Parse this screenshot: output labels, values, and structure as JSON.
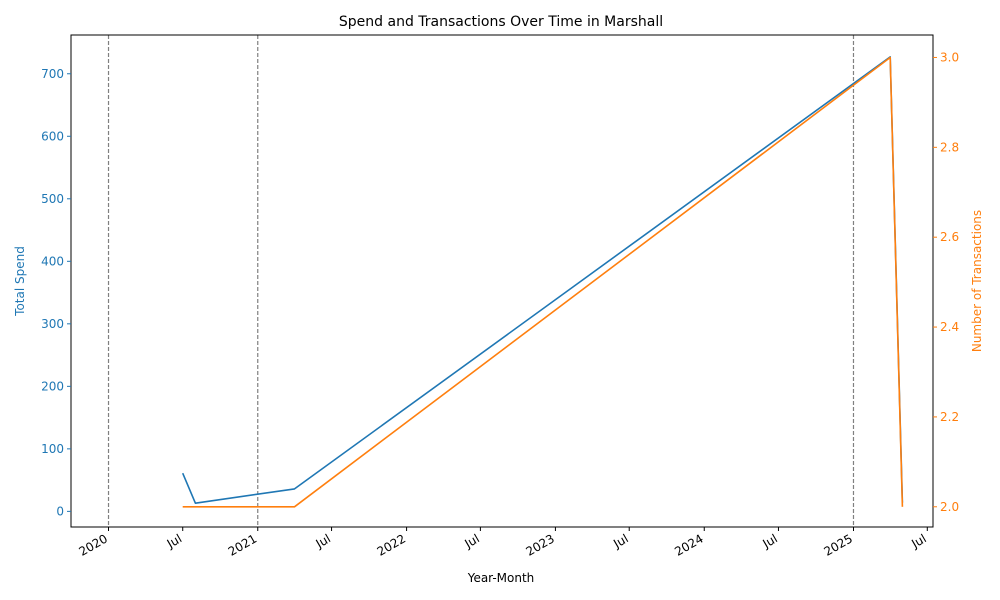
{
  "chart_data": {
    "type": "line",
    "title": "Spend and Transactions Over Time in Marshall",
    "xlabel": "Year-Month",
    "x_range": [
      "2019-10-01",
      "2025-07-15"
    ],
    "x_ticks": [
      {
        "date": "2020-01-01",
        "label": "2020"
      },
      {
        "date": "2020-07-01",
        "label": "Jul"
      },
      {
        "date": "2021-01-01",
        "label": "2021"
      },
      {
        "date": "2021-07-01",
        "label": "Jul"
      },
      {
        "date": "2022-01-01",
        "label": "2022"
      },
      {
        "date": "2022-07-01",
        "label": "Jul"
      },
      {
        "date": "2023-01-01",
        "label": "2023"
      },
      {
        "date": "2023-07-01",
        "label": "Jul"
      },
      {
        "date": "2024-01-01",
        "label": "2024"
      },
      {
        "date": "2024-07-01",
        "label": "Jul"
      },
      {
        "date": "2025-01-01",
        "label": "2025"
      },
      {
        "date": "2025-07-01",
        "label": "Jul"
      }
    ],
    "reference_lines": [
      "2020-01-01",
      "2021-01-01",
      "2025-01-01"
    ],
    "left_axis": {
      "label": "Total Spend",
      "color": "#1f77b4",
      "ylim": [
        -25,
        762
      ],
      "ticks": [
        0,
        100,
        200,
        300,
        400,
        500,
        600,
        700
      ]
    },
    "right_axis": {
      "label": "Number of Transactions",
      "color": "#ff7f0e",
      "ylim": [
        1.955,
        3.05
      ],
      "ticks": [
        2.0,
        2.2,
        2.4,
        2.6,
        2.8,
        3.0
      ],
      "tick_labels": [
        "2.0",
        "2.2",
        "2.4",
        "2.6",
        "2.8",
        "3.0"
      ]
    },
    "series": [
      {
        "axis": "left",
        "color": "#1f77b4",
        "points": [
          {
            "x": "2020-07-01",
            "y": 61
          },
          {
            "x": "2020-08-01",
            "y": 13
          },
          {
            "x": "2021-04-01",
            "y": 36
          },
          {
            "x": "2025-04-01",
            "y": 727
          },
          {
            "x": "2025-05-01",
            "y": 14
          }
        ]
      },
      {
        "axis": "right",
        "color": "#ff7f0e",
        "points": [
          {
            "x": "2020-07-01",
            "y": 2.0
          },
          {
            "x": "2020-08-01",
            "y": 2.0
          },
          {
            "x": "2021-04-01",
            "y": 2.0
          },
          {
            "x": "2025-04-01",
            "y": 3.0
          },
          {
            "x": "2025-05-01",
            "y": 2.0
          }
        ]
      }
    ],
    "grid": false,
    "legend": "none"
  }
}
